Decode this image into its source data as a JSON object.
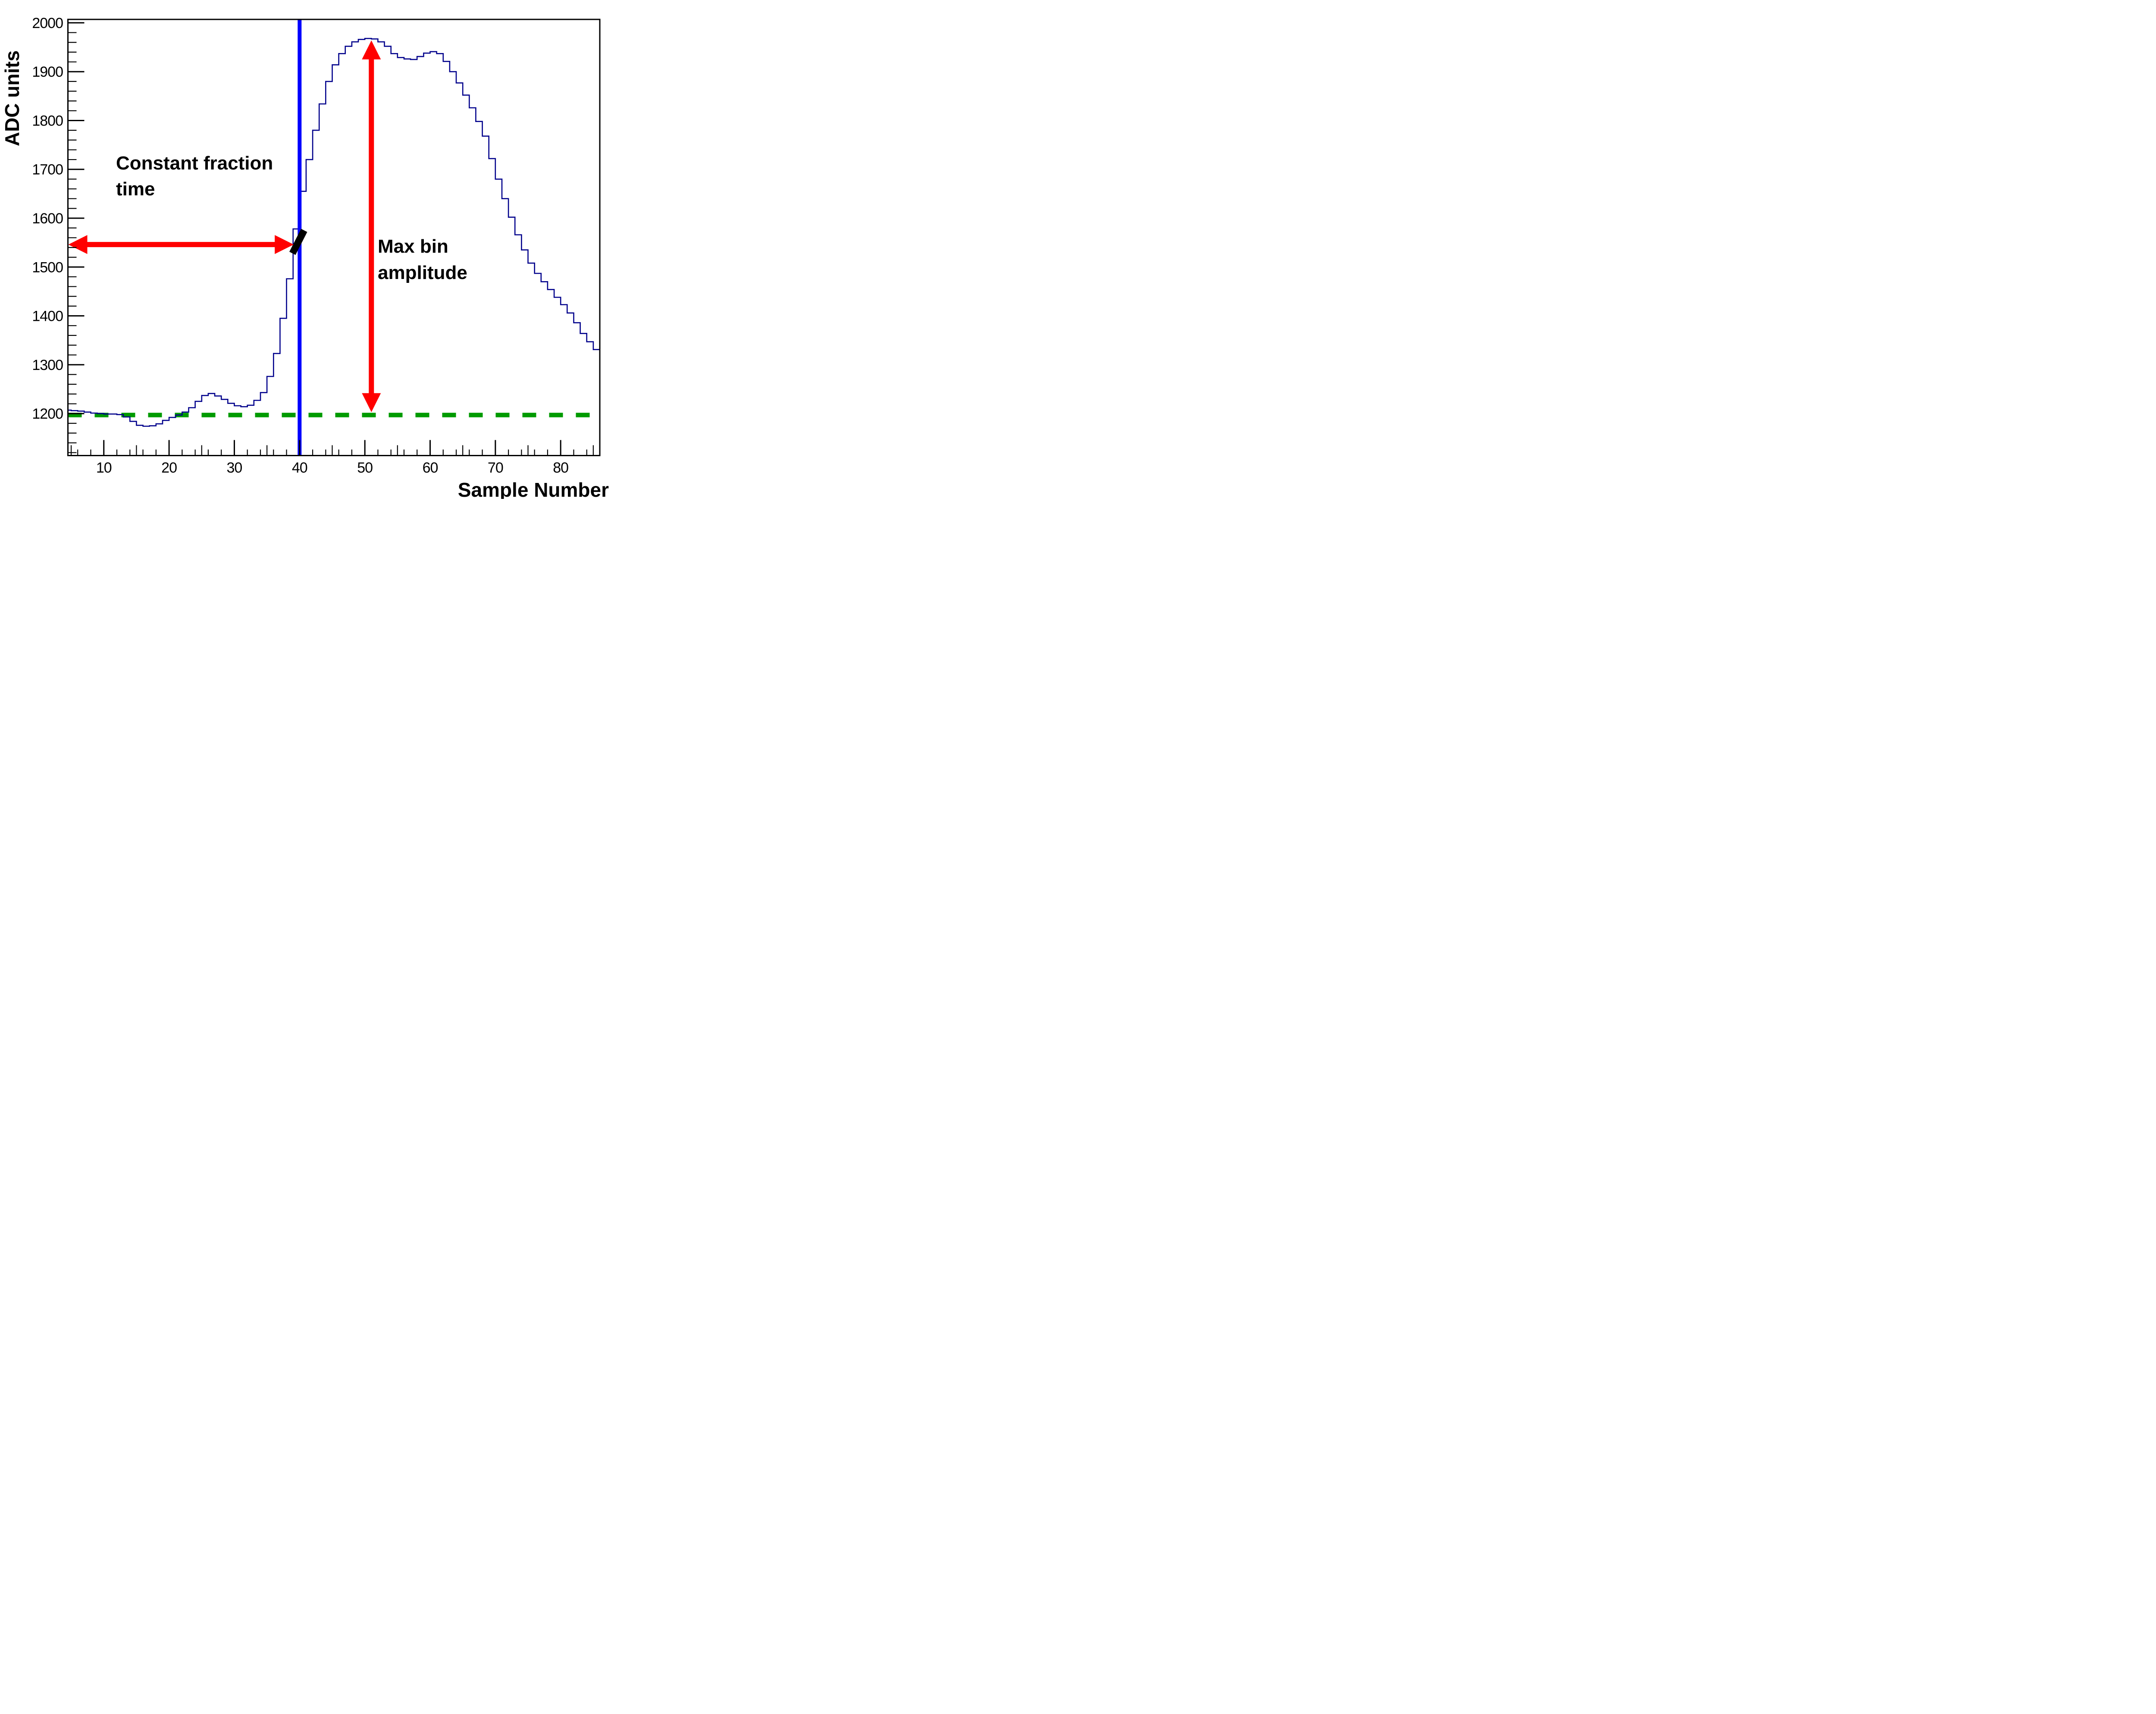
{
  "figure": {
    "background": "#ffffff",
    "frame_color": "#000000"
  },
  "axis_titles": {
    "y": "ADC units",
    "x": "Sample Number"
  },
  "annotations": {
    "cf_label_line1": "Constant fraction",
    "cf_label_line2": "time",
    "amp_label_line1": "Max bin",
    "amp_label_line2": "amplitude"
  },
  "colors": {
    "histogram": "#00008B",
    "cf_sample_line": "#0000FF",
    "baseline": "#009A00",
    "arrows": "#FF0000",
    "crossing_mark": "#000000"
  },
  "chart_data": {
    "type": "line",
    "subtype": "step-histogram",
    "title": "",
    "xlabel": "Sample Number",
    "ylabel": "ADC units",
    "xlim": [
      4.5,
      86
    ],
    "ylim": [
      1114,
      2007
    ],
    "grid": false,
    "legend": "none",
    "x_major_ticks": [
      10,
      20,
      30,
      40,
      50,
      60,
      70,
      80
    ],
    "x_medium_tick_step": 5,
    "x_minor_tick_step": 2,
    "y_major_ticks": [
      1200,
      1300,
      1400,
      1500,
      1600,
      1700,
      1800,
      1900,
      2000
    ],
    "y_minor_tick_step": 20,
    "baseline": {
      "value": 1197,
      "style": "dashed",
      "x_from": 4.5,
      "x_to": 85.2
    },
    "histogram": {
      "first_bin": 4,
      "bin_width": 1,
      "values": [
        1207,
        1206,
        1205,
        1203,
        1201,
        1200,
        1199,
        1199,
        1198,
        1193,
        1184,
        1176,
        1174,
        1175,
        1179,
        1186,
        1192,
        1197,
        1203,
        1212,
        1225,
        1237,
        1241,
        1236,
        1229,
        1221,
        1216,
        1214,
        1217,
        1227,
        1243,
        1276,
        1323,
        1395,
        1476,
        1578,
        1655,
        1720,
        1780,
        1834,
        1880,
        1914,
        1937,
        1952,
        1961,
        1966,
        1968,
        1967,
        1961,
        1952,
        1937,
        1929,
        1926,
        1925,
        1931,
        1938,
        1941,
        1937,
        1921,
        1900,
        1877,
        1852,
        1826,
        1798,
        1768,
        1722,
        1680,
        1640,
        1602,
        1566,
        1535,
        1508,
        1487,
        1470,
        1454,
        1438,
        1423,
        1406,
        1386,
        1364,
        1347,
        1331
      ]
    },
    "max_bin": {
      "sample": 50,
      "amplitude": 1968
    },
    "cf_sample_line_x": 40,
    "cf_crossing_mark": {
      "x1": 38.9,
      "y1": 1528,
      "x2": 40.7,
      "y2": 1575
    },
    "cf_time_arrow": {
      "y": 1546,
      "x_from": 4.5,
      "x_to": 39.1,
      "double_headed": true
    },
    "amplitude_arrow": {
      "x": 51,
      "y_from": 1203,
      "y_to": 1964,
      "double_headed": true
    }
  }
}
